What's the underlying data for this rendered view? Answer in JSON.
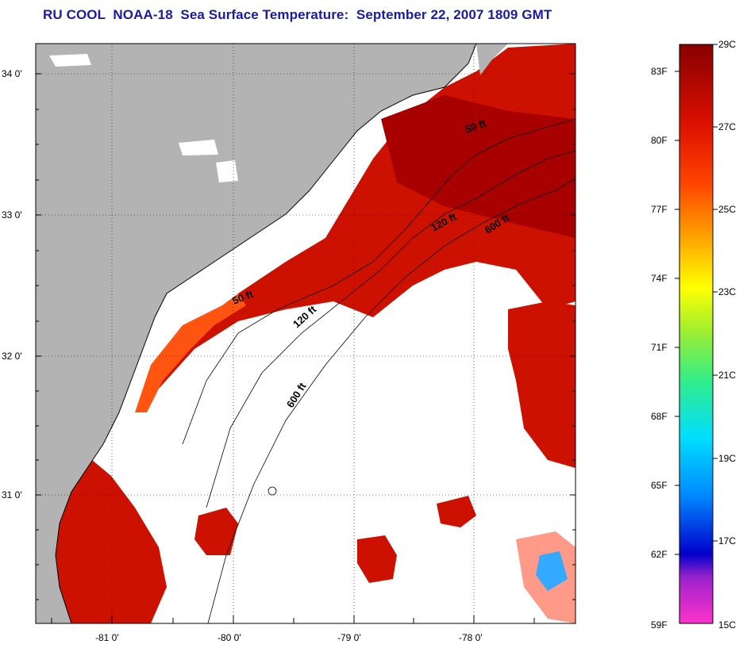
{
  "title": "RU COOL  NOAA-18  Sea Surface Temperature:  September 22, 2007 1809 GMT",
  "map": {
    "lat_labels": [
      "34 0'",
      "33 0'",
      "32 0'",
      "31 0'"
    ],
    "lon_labels": [
      "-81 0'",
      "-80 0'",
      "-79 0'",
      "-78 0'"
    ],
    "depth_labels": [
      "50 ft",
      "120 ft",
      "600 ft",
      "50 ft",
      "120 ft",
      "600 ft"
    ],
    "colors": {
      "land": "#b3b3b3",
      "cloud": "#ffffff",
      "water_warm": "#cc1100"
    }
  },
  "colorbar": {
    "fahrenheit": [
      "83F",
      "80F",
      "77F",
      "74F",
      "71F",
      "68F",
      "65F",
      "62F",
      "59F"
    ],
    "celsius": [
      "29C",
      "27C",
      "25C",
      "23C",
      "21C",
      "19C",
      "17C",
      "15C"
    ]
  }
}
